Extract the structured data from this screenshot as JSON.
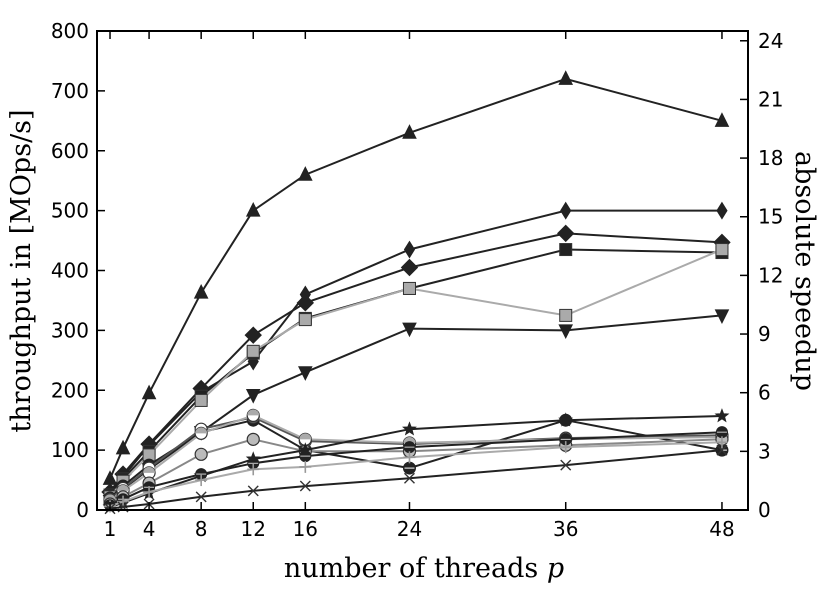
{
  "chart_data": {
    "type": "line",
    "xlabel": "number of threads p",
    "xlabel_main": "number of threads ",
    "xlabel_var": "p",
    "ylabel": "throughput in [MOps/s]",
    "y2label": "absolute speedup",
    "x_ticks": [
      1,
      4,
      8,
      12,
      16,
      24,
      36,
      48
    ],
    "y_ticks": [
      0,
      100,
      200,
      300,
      400,
      500,
      600,
      700,
      800
    ],
    "y2_ticks": [
      0,
      3,
      6,
      9,
      12,
      15,
      18,
      21,
      24
    ],
    "xlim": [
      0,
      50
    ],
    "ylim": [
      0,
      800
    ],
    "y2lim": [
      0,
      24.5
    ],
    "grid": false,
    "series": [
      {
        "marker": "triangle-up",
        "color": "#222222",
        "x": [
          1,
          2,
          4,
          8,
          12,
          16,
          24,
          36,
          48
        ],
        "values": [
          52,
          103,
          195,
          363,
          500,
          560,
          630,
          720,
          650
        ]
      },
      {
        "marker": "thin-diamond",
        "color": "#222222",
        "x": [
          1,
          2,
          4,
          8,
          12,
          16,
          24,
          36,
          48
        ],
        "values": [
          28,
          55,
          108,
          197,
          248,
          360,
          435,
          500,
          500
        ]
      },
      {
        "marker": "diamond",
        "color": "#222222",
        "x": [
          1,
          2,
          4,
          8,
          12,
          16,
          24,
          36,
          48
        ],
        "values": [
          30,
          60,
          110,
          203,
          292,
          346,
          405,
          462,
          447
        ]
      },
      {
        "marker": "square",
        "color": "#222222",
        "x": [
          1,
          2,
          4,
          8,
          12,
          16,
          24,
          36,
          48
        ],
        "values": [
          25,
          52,
          98,
          190,
          262,
          320,
          370,
          435,
          430
        ]
      },
      {
        "marker": "square",
        "color": "#aaaaaa",
        "x": [
          1,
          2,
          4,
          8,
          12,
          16,
          24,
          36,
          48
        ],
        "values": [
          22,
          48,
          92,
          183,
          265,
          318,
          370,
          325,
          435
        ]
      },
      {
        "marker": "triangle-down",
        "color": "#222222",
        "x": [
          1,
          2,
          4,
          8,
          12,
          16,
          24,
          36,
          48
        ],
        "values": [
          15,
          35,
          68,
          130,
          192,
          230,
          303,
          300,
          325
        ]
      },
      {
        "marker": "circle-x",
        "color": "#222222",
        "x": [
          1,
          2,
          4,
          8,
          12,
          16,
          24,
          36,
          48
        ],
        "values": [
          20,
          40,
          75,
          130,
          150,
          100,
          70,
          150,
          100
        ]
      },
      {
        "marker": "circle-half",
        "color": "#555555",
        "x": [
          1,
          2,
          4,
          8,
          12,
          16,
          24,
          36,
          48
        ],
        "values": [
          18,
          36,
          70,
          135,
          155,
          115,
          110,
          120,
          125
        ]
      },
      {
        "marker": "circle-half-light",
        "color": "#aaaaaa",
        "x": [
          1,
          2,
          4,
          8,
          12,
          16,
          24,
          36,
          48
        ],
        "values": [
          16,
          32,
          62,
          128,
          158,
          118,
          112,
          118,
          122
        ]
      },
      {
        "marker": "circle-light",
        "color": "#888888",
        "x": [
          1,
          2,
          4,
          8,
          12,
          16,
          24,
          36,
          48
        ],
        "values": [
          10,
          22,
          45,
          93,
          118,
          98,
          98,
          108,
          118
        ]
      },
      {
        "marker": "star",
        "color": "#222222",
        "x": [
          1,
          2,
          4,
          8,
          12,
          16,
          24,
          36,
          48
        ],
        "values": [
          5,
          12,
          28,
          57,
          85,
          100,
          135,
          150,
          157
        ]
      },
      {
        "marker": "circle-line",
        "color": "#222222",
        "x": [
          1,
          2,
          4,
          8,
          12,
          16,
          24,
          36,
          48
        ],
        "values": [
          8,
          18,
          38,
          60,
          78,
          90,
          105,
          118,
          130
        ]
      },
      {
        "marker": "plus",
        "color": "#aaaaaa",
        "x": [
          1,
          2,
          4,
          8,
          12,
          16,
          24,
          36,
          48
        ],
        "values": [
          6,
          14,
          30,
          50,
          68,
          72,
          88,
          105,
          113
        ]
      },
      {
        "marker": "x",
        "color": "#222222",
        "x": [
          1,
          2,
          4,
          8,
          12,
          16,
          24,
          36,
          48
        ],
        "values": [
          2,
          5,
          10,
          22,
          32,
          40,
          53,
          75,
          100
        ]
      }
    ]
  }
}
